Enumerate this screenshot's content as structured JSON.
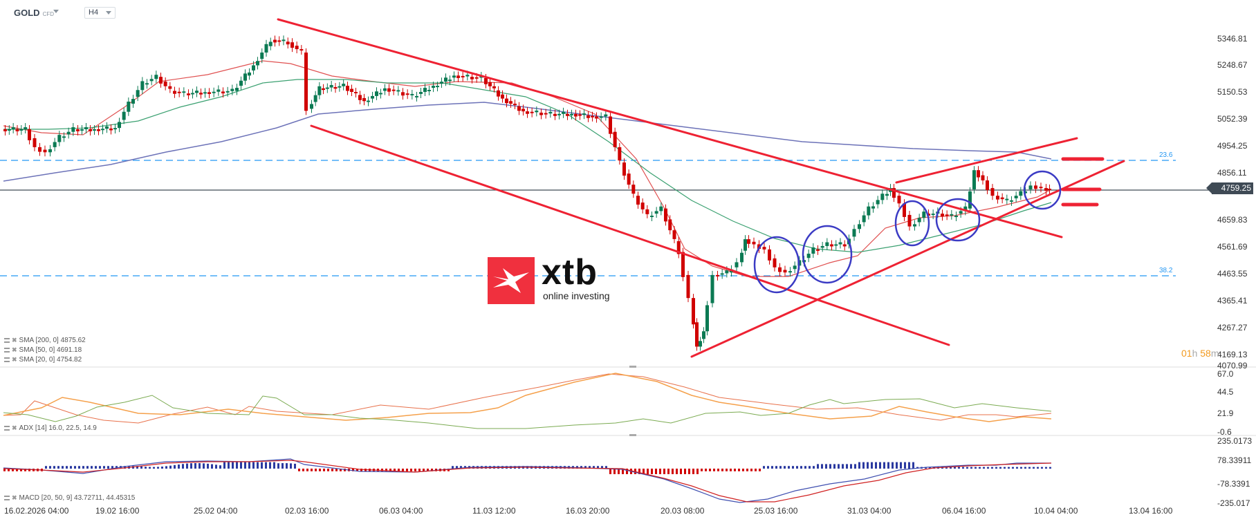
{
  "header": {
    "symbol": "GOLD",
    "symbol_type": "CFD",
    "timeframe": "H4"
  },
  "price_axis": {
    "labels": [
      "5346.81",
      "5248.67",
      "5150.53",
      "5052.39",
      "4954.25",
      "4856.11",
      "4759.25",
      "4659.83",
      "4561.69",
      "4463.55",
      "4365.41",
      "4267.27",
      "4169.13",
      "4070.99"
    ],
    "current_price": "4759.25"
  },
  "fib_levels": [
    {
      "label": "23.6",
      "price": 4856.6
    },
    {
      "label": "38.2",
      "price": 4425
    }
  ],
  "timer": {
    "hours": "01",
    "h_unit": "h",
    "minutes": "58",
    "m_unit": "m"
  },
  "indicators": {
    "sma200": "SMA [200, 0] 4875.62",
    "sma50": "SMA [50, 0] 4691.18",
    "sma20": "SMA [20, 0] 4754.82",
    "adx": "ADX [14] 16.0, 22.5, 14.9",
    "macd": "MACD [20, 50, 9] 43.72711, 44.45315"
  },
  "adx_axis": [
    "67.0",
    "44.5",
    "21.9",
    "-0.6"
  ],
  "macd_axis": [
    "235.0173",
    "78.33911",
    "-78.3391",
    "-235.017"
  ],
  "time_axis": [
    "16.02.2026 04:00",
    "19.02 16:00",
    "25.02 04:00",
    "02.03 16:00",
    "06.03 04:00",
    "11.03 12:00",
    "16.03 20:00",
    "20.03 08:00",
    "25.03 16:00",
    "31.03 04:00",
    "06.04 16:00",
    "10.04 04:00",
    "13.04 16:00"
  ],
  "logo": {
    "word": "xtb",
    "tagline": "online investing"
  },
  "colors": {
    "bull": "#0b7a53",
    "bear": "#d00000",
    "trendline": "#ee2233",
    "circle": "#3b3bc4",
    "sma20": "#e05050",
    "sma50": "#3aa070",
    "sma200": "#6c72b8",
    "fib": "#2196f3"
  },
  "chart_data": {
    "type": "candlestick",
    "title": "GOLD CFD H4",
    "ylim": [
      4070.99,
      5346.81
    ],
    "x": [
      "16.02.2026 04:00",
      "19.02 16:00",
      "25.02 04:00",
      "02.03 16:00",
      "06.03 04:00",
      "11.03 12:00",
      "16.03 20:00",
      "20.03 08:00",
      "25.03 16:00",
      "31.03 04:00",
      "06.04 16:00",
      "10.04 04:00"
    ],
    "series": [
      {
        "name": "Close (approx. at x labels)",
        "values": [
          4990,
          4930,
          5160,
          5230,
          5140,
          5140,
          4990,
          4260,
          4440,
          4740,
          4700,
          4760
        ]
      },
      {
        "name": "SMA 200",
        "last": 4875.62
      },
      {
        "name": "SMA 50",
        "last": 4691.18
      },
      {
        "name": "SMA 20",
        "last": 4754.82
      }
    ],
    "annotations": [
      "Falling channel from 02.03 high ~5400",
      "Ascending support from 20.03 low ~4100",
      "Fibonacci 23.6 at ~4856",
      "Fibonacci 38.2 at ~4425",
      "Current price 4759.25"
    ],
    "subcharts": [
      {
        "name": "ADX [14]",
        "values": [
          16.0,
          22.5,
          14.9
        ],
        "ylim": [
          -0.6,
          67.0
        ]
      },
      {
        "name": "MACD [20, 50, 9]",
        "values": [
          43.72711,
          44.45315
        ],
        "ylim": [
          -235.017,
          235.0173
        ]
      }
    ]
  }
}
